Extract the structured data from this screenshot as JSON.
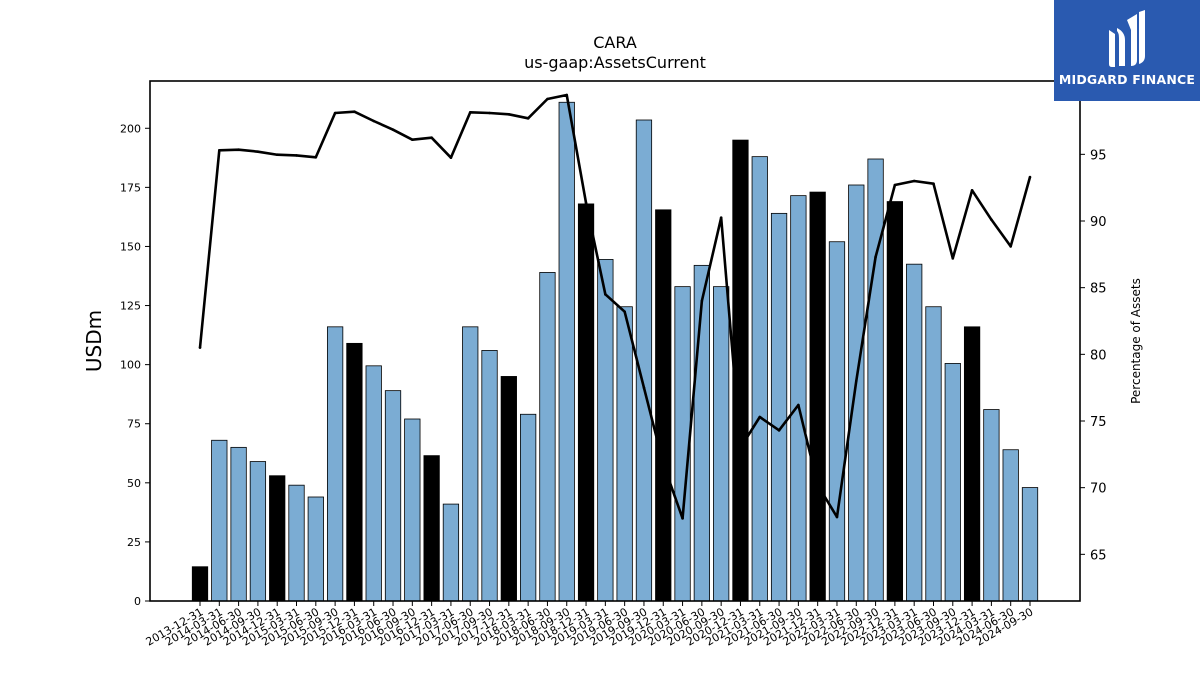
{
  "chart_data": {
    "type": "bar",
    "title": "CARA",
    "subtitle": "us-gaap:AssetsCurrent",
    "ylabel": "USDm",
    "y2label": "Percentage of Assets",
    "ylim": [
      0,
      220
    ],
    "y2lim": [
      61.5,
      100.5
    ],
    "yticks": [
      0,
      25,
      50,
      75,
      100,
      125,
      150,
      175,
      200
    ],
    "y2ticks": [
      65,
      70,
      75,
      80,
      85,
      90,
      95
    ],
    "categories": [
      "2013-12-31",
      "2014-03-31",
      "2014-06-30",
      "2014-09-30",
      "2014-12-31",
      "2015-03-31",
      "2015-06-30",
      "2015-09-30",
      "2015-12-31",
      "2016-03-31",
      "2016-06-30",
      "2016-09-30",
      "2016-12-31",
      "2017-03-31",
      "2017-06-30",
      "2017-09-30",
      "2017-12-31",
      "2018-03-31",
      "2018-06-30",
      "2018-09-30",
      "2018-12-31",
      "2019-03-31",
      "2019-06-30",
      "2019-09-30",
      "2019-12-31",
      "2020-03-31",
      "2020-06-30",
      "2020-09-30",
      "2020-12-31",
      "2021-03-31",
      "2021-06-30",
      "2021-09-30",
      "2021-12-31",
      "2022-03-31",
      "2022-06-30",
      "2022-09-30",
      "2022-12-31",
      "2023-03-31",
      "2023-06-30",
      "2023-09-30",
      "2023-12-31",
      "2024-03-31",
      "2024-06-30",
      "2024-09-30"
    ],
    "series": [
      {
        "kind": "bar",
        "values": [
          14.5,
          68,
          65,
          59,
          53,
          49,
          44,
          116,
          109,
          99.5,
          89,
          77,
          61.5,
          41,
          116,
          106,
          95,
          79,
          139,
          211,
          168,
          144.5,
          124.5,
          203.5,
          165.5,
          133,
          142,
          133,
          195,
          188,
          164,
          171.5,
          173,
          152,
          176,
          187,
          169,
          142.5,
          124.5,
          100.5,
          116,
          81,
          64,
          48
        ],
        "highlight": [
          true,
          false,
          false,
          false,
          true,
          false,
          false,
          false,
          true,
          false,
          false,
          false,
          true,
          false,
          false,
          false,
          true,
          false,
          false,
          false,
          true,
          false,
          false,
          false,
          true,
          false,
          false,
          false,
          true,
          false,
          false,
          false,
          true,
          false,
          false,
          false,
          true,
          false,
          false,
          false,
          true,
          false,
          false,
          false
        ]
      },
      {
        "kind": "line",
        "axis": "right",
        "values": [
          80.5,
          95.3,
          95.35,
          95.2,
          94.97,
          94.92,
          94.78,
          98.1,
          98.2,
          97.5,
          96.85,
          96.1,
          96.25,
          94.75,
          98.15,
          98.1,
          98.0,
          97.7,
          99.15,
          99.45,
          91.35,
          84.5,
          83.2,
          77.5,
          71.8,
          67.7,
          84,
          90.25,
          73.0,
          75.3,
          74.3,
          76.2,
          70.2,
          67.8,
          78.0,
          87.3,
          92.7,
          93.0,
          92.8,
          87.2,
          92.3,
          90.1,
          88.1,
          93.3
        ]
      }
    ],
    "colors": {
      "bar": "#7bacd3",
      "bar_highlight": "#000000",
      "bar_edge": "#000000",
      "line": "#000000",
      "logo_bg": "#2a5ab0"
    },
    "grid": false,
    "legend": "none"
  },
  "logo": {
    "name": "MIDGARD FINANCE",
    "icon": "midgard-logo-mark"
  }
}
